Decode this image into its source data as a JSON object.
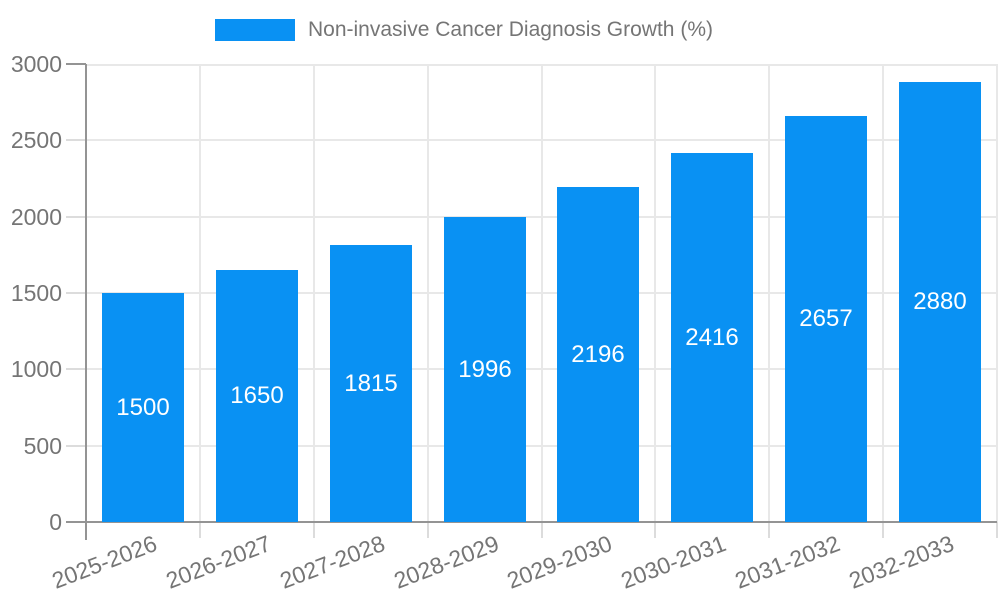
{
  "chart_data": {
    "type": "bar",
    "title": "Non-invasive Cancer Diagnosis Growth (%)",
    "legend": [
      "Non-invasive Cancer Diagnosis Growth (%)"
    ],
    "legend_position": "top-center",
    "categories": [
      "2025-2026",
      "2026-2027",
      "2027-2028",
      "2028-2029",
      "2029-2030",
      "2030-2031",
      "2031-2032",
      "2032-2033"
    ],
    "values": [
      1500,
      1650,
      1815,
      1996,
      2196,
      2416,
      2657,
      2880
    ],
    "value_labels": [
      "1500",
      "1650",
      "1815",
      "1996",
      "2196",
      "2416",
      "2657",
      "2880"
    ],
    "xlabel": "",
    "ylabel": "",
    "ylim": [
      0,
      3000
    ],
    "yticks": [
      0,
      500,
      1000,
      1500,
      2000,
      2500,
      3000
    ],
    "ytick_labels": [
      "0",
      "500",
      "1000",
      "1500",
      "2000",
      "2500",
      "3000"
    ],
    "grid": true,
    "x_label_rotation_deg": -21,
    "colors": {
      "bar": "#0991f3",
      "bar_value_label": "#ffffff",
      "tick_label": "#757575",
      "legend_text": "#757575",
      "gridline": "#e8e8e8",
      "axis_line": "#949494",
      "minor_tick": "#dcdcdc",
      "background": "#ffffff"
    }
  }
}
